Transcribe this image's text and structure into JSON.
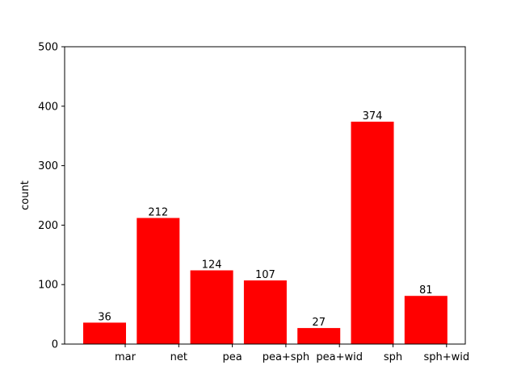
{
  "chart_data": {
    "type": "bar",
    "categories": [
      "mar",
      "net",
      "pea",
      "pea+sph",
      "pea+wid",
      "sph",
      "sph+wid"
    ],
    "values": [
      36,
      212,
      124,
      107,
      27,
      374,
      81
    ],
    "value_labels": [
      "36",
      "212",
      "124",
      "107",
      "27",
      "374",
      "81"
    ],
    "ylabel": "count",
    "ylim": [
      0,
      500
    ],
    "yticks": [
      0,
      100,
      200,
      300,
      400,
      500
    ],
    "bar_color": "#ff0000",
    "grid": false,
    "legend": false,
    "tick_labels_offset": "tick labels sit to the right of the bars"
  }
}
